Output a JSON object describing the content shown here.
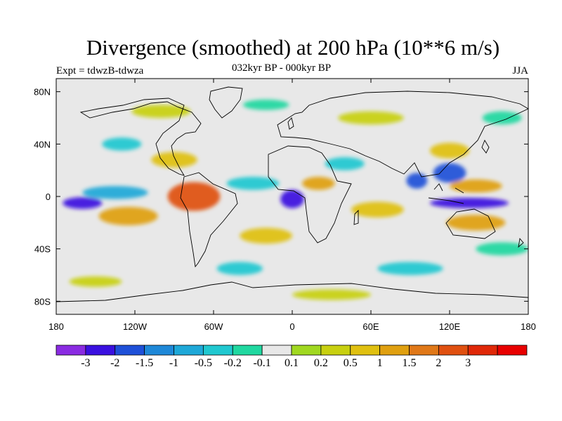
{
  "header": {
    "title": "Divergence (smoothed) at 200 hPa (10**6 m/s)",
    "left": "Expt = tdwzB-tdwza",
    "center": "032kyr BP - 000kyr BP",
    "right": "JJA"
  },
  "chart_data": {
    "type": "heatmap",
    "projection": "cylindrical-equidistant",
    "title": "Divergence (smoothed) at 200 hPa (10**6 m/s)",
    "xlim": [
      -180,
      180
    ],
    "ylim": [
      -90,
      90
    ],
    "xticks": [
      {
        "value": -180,
        "label": "180"
      },
      {
        "value": -120,
        "label": "120W"
      },
      {
        "value": -60,
        "label": "60W"
      },
      {
        "value": 0,
        "label": "0"
      },
      {
        "value": 60,
        "label": "60E"
      },
      {
        "value": 120,
        "label": "120E"
      },
      {
        "value": 180,
        "label": "180"
      }
    ],
    "yticks": [
      {
        "value": 80,
        "label": "80N"
      },
      {
        "value": 40,
        "label": "40N"
      },
      {
        "value": 0,
        "label": "0"
      },
      {
        "value": -40,
        "label": "40S"
      },
      {
        "value": -80,
        "label": "80S"
      }
    ],
    "colorbar": {
      "orientation": "horizontal",
      "colors": [
        "#8A2BE2",
        "#3A10E0",
        "#1E50D8",
        "#1E88D8",
        "#1EA8D8",
        "#20C8D0",
        "#20D8A0",
        "#E8E8E8",
        "#A0D820",
        "#C8D010",
        "#E0C010",
        "#E0A010",
        "#E07818",
        "#E05010",
        "#E02808",
        "#E80000"
      ],
      "labels": [
        "-3",
        "-2",
        "-1.5",
        "-1",
        "-0.5",
        "-0.2",
        "-0.1",
        "0.1",
        "0.2",
        "0.5",
        "1",
        "1.5",
        "2",
        "3"
      ]
    },
    "features": [
      {
        "lon": -160,
        "lat": -5,
        "w": 30,
        "h": 9,
        "level": -3
      },
      {
        "lon": -135,
        "lat": 3,
        "w": 50,
        "h": 10,
        "level": -1
      },
      {
        "lon": 0,
        "lat": -2,
        "w": 18,
        "h": 14,
        "level": -3
      },
      {
        "lon": 135,
        "lat": -5,
        "w": 60,
        "h": 8,
        "level": -3
      },
      {
        "lon": 120,
        "lat": 18,
        "w": 25,
        "h": 15,
        "level": -2
      },
      {
        "lon": 95,
        "lat": 12,
        "w": 16,
        "h": 12,
        "level": -2
      },
      {
        "lon": -75,
        "lat": 0,
        "w": 40,
        "h": 22,
        "level": 2
      },
      {
        "lon": -125,
        "lat": -15,
        "w": 45,
        "h": 14,
        "level": 1
      },
      {
        "lon": 20,
        "lat": 10,
        "w": 25,
        "h": 10,
        "level": 1
      },
      {
        "lon": 140,
        "lat": 8,
        "w": 40,
        "h": 10,
        "level": 1
      },
      {
        "lon": 140,
        "lat": -20,
        "w": 45,
        "h": 12,
        "level": 1
      },
      {
        "lon": 65,
        "lat": -10,
        "w": 40,
        "h": 12,
        "level": 0.5
      },
      {
        "lon": -90,
        "lat": 28,
        "w": 35,
        "h": 12,
        "level": 0.5
      },
      {
        "lon": -20,
        "lat": -30,
        "w": 40,
        "h": 12,
        "level": 0.5
      },
      {
        "lon": 120,
        "lat": 35,
        "w": 30,
        "h": 12,
        "level": 0.5
      },
      {
        "lon": -130,
        "lat": 40,
        "w": 30,
        "h": 10,
        "level": -0.5
      },
      {
        "lon": -30,
        "lat": 10,
        "w": 40,
        "h": 10,
        "level": -0.5
      },
      {
        "lon": 40,
        "lat": 25,
        "w": 30,
        "h": 10,
        "level": -0.5
      },
      {
        "lon": -40,
        "lat": -55,
        "w": 35,
        "h": 10,
        "level": -0.5
      },
      {
        "lon": 90,
        "lat": -55,
        "w": 50,
        "h": 10,
        "level": -0.5
      },
      {
        "lon": -100,
        "lat": 65,
        "w": 45,
        "h": 10,
        "level": 0.2
      },
      {
        "lon": 60,
        "lat": 60,
        "w": 50,
        "h": 10,
        "level": 0.2
      },
      {
        "lon": -150,
        "lat": -65,
        "w": 40,
        "h": 8,
        "level": 0.2
      },
      {
        "lon": 30,
        "lat": -75,
        "w": 60,
        "h": 8,
        "level": 0.2
      },
      {
        "lon": -20,
        "lat": 70,
        "w": 35,
        "h": 8,
        "level": -0.2
      },
      {
        "lon": 160,
        "lat": 60,
        "w": 30,
        "h": 10,
        "level": -0.2
      },
      {
        "lon": 160,
        "lat": -40,
        "w": 40,
        "h": 10,
        "level": -0.2
      }
    ]
  }
}
